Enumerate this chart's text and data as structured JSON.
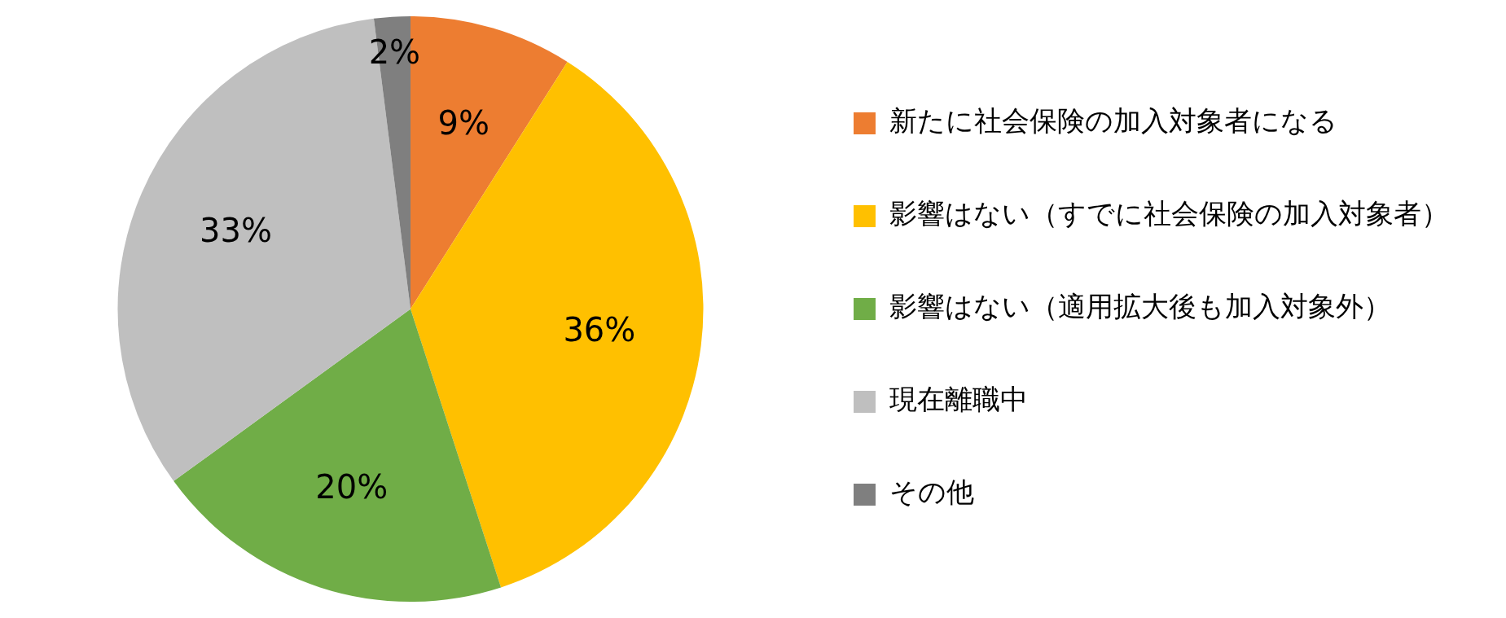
{
  "chart_data": {
    "type": "pie",
    "categories": [
      "新たに社会保険の加入対象者になる",
      "影響はない（すでに社会保険の加入対象者）",
      "影響はない（適用拡大後も加入対象外）",
      "現在離職中",
      "その他"
    ],
    "values": [
      9,
      36,
      20,
      33,
      2
    ],
    "colors": [
      "#ed7d31",
      "#ffc000",
      "#70ad47",
      "#bfbfbf",
      "#7f7f7f"
    ],
    "value_labels": [
      "9%",
      "36%",
      "20%",
      "33%",
      "2%"
    ],
    "legend": "right"
  }
}
